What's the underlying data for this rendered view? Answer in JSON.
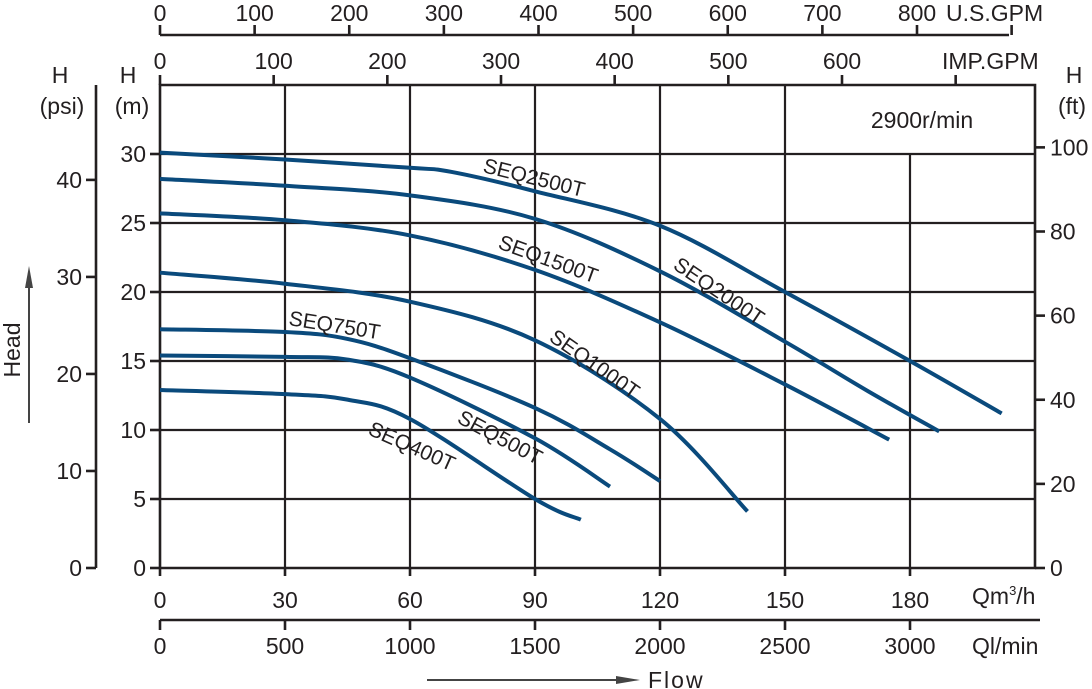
{
  "chart_data": {
    "type": "line",
    "title": "",
    "speed_label": "2900r/min",
    "xlabel": "Flow",
    "ylabel": "Head",
    "x_axes": {
      "m3h": {
        "label": "Qm³/h",
        "ticks": [
          0,
          30,
          60,
          90,
          120,
          150,
          180
        ],
        "range": [
          0,
          210
        ]
      },
      "lmin": {
        "label": "Ql/min",
        "ticks": [
          0,
          500,
          1000,
          1500,
          2000,
          2500,
          3000
        ]
      },
      "imp_gpm": {
        "label": "IMP.GPM",
        "ticks": [
          0,
          100,
          200,
          300,
          400,
          500,
          600
        ]
      },
      "us_gpm": {
        "label": "U.S.GPM",
        "ticks": [
          0,
          100,
          200,
          300,
          400,
          500,
          600,
          700,
          800
        ]
      }
    },
    "y_axes": {
      "m": {
        "label_top": "H",
        "label_unit": "(m)",
        "ticks": [
          0,
          5,
          10,
          15,
          20,
          25,
          30
        ],
        "range": [
          0,
          35
        ]
      },
      "psi": {
        "label_top": "H",
        "label_unit": "(psi)",
        "ticks": [
          0,
          10,
          20,
          30,
          40
        ]
      },
      "ft": {
        "label_top": "H",
        "label_unit": "(ft)",
        "ticks": [
          0,
          20,
          40,
          60,
          80,
          100
        ]
      }
    },
    "grid": true,
    "series": [
      {
        "name": "SEQ2500T",
        "x": [
          0,
          30,
          60,
          70,
          90,
          120,
          150,
          180,
          202
        ],
        "y": [
          30.1,
          29.6,
          29.0,
          28.7,
          27.3,
          24.8,
          20.0,
          15.0,
          11.2
        ]
      },
      {
        "name": "SEQ2000T",
        "x": [
          0,
          30,
          60,
          90,
          120,
          150,
          170,
          187
        ],
        "y": [
          28.2,
          27.7,
          27.0,
          25.3,
          21.5,
          16.4,
          12.8,
          9.9
        ]
      },
      {
        "name": "SEQ1500T",
        "x": [
          0,
          30,
          60,
          90,
          120,
          150,
          175
        ],
        "y": [
          25.7,
          25.2,
          24.1,
          21.6,
          17.8,
          13.3,
          9.3
        ]
      },
      {
        "name": "SEQ1000T",
        "x": [
          0,
          30,
          60,
          90,
          120,
          141
        ],
        "y": [
          21.4,
          20.6,
          19.3,
          16.5,
          10.8,
          4.1
        ]
      },
      {
        "name": "SEQ750T",
        "x": [
          0,
          30,
          45,
          60,
          90,
          108,
          120
        ],
        "y": [
          17.3,
          17.1,
          16.6,
          15.2,
          11.6,
          8.6,
          6.3
        ]
      },
      {
        "name": "SEQ500T",
        "x": [
          0,
          30,
          45,
          60,
          90,
          108
        ],
        "y": [
          15.4,
          15.3,
          15.1,
          13.8,
          9.4,
          5.9
        ]
      },
      {
        "name": "SEQ400T",
        "x": [
          0,
          30,
          45,
          60,
          90,
          101
        ],
        "y": [
          12.9,
          12.6,
          12.2,
          10.8,
          5.0,
          3.5
        ]
      }
    ],
    "legend": "inline labels on curves"
  }
}
